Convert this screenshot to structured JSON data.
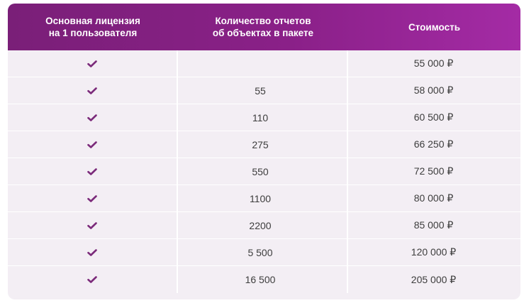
{
  "colors": {
    "header_gradient_start": "#7a1f78",
    "header_gradient_end": "#a42ba5",
    "row_background": "#f3eef4",
    "check_color": "#7b2a7a"
  },
  "table": {
    "headers": {
      "license": [
        "Основная лицензия",
        "на 1 пользователя"
      ],
      "reports": [
        "Количество отчетов",
        "об объектах в пакете"
      ],
      "price": "Стоимость"
    },
    "rows": [
      {
        "license": "check-icon",
        "reports": "",
        "price": "55 000 ₽"
      },
      {
        "license": "check-icon",
        "reports": "55",
        "price": "58 000 ₽"
      },
      {
        "license": "check-icon",
        "reports": "110",
        "price": "60 500 ₽"
      },
      {
        "license": "check-icon",
        "reports": "275",
        "price": "66 250 ₽"
      },
      {
        "license": "check-icon",
        "reports": "550",
        "price": "72 500 ₽"
      },
      {
        "license": "check-icon",
        "reports": "1100",
        "price": "80 000 ₽"
      },
      {
        "license": "check-icon",
        "reports": "2200",
        "price": "85 000 ₽"
      },
      {
        "license": "check-icon",
        "reports": "5 500",
        "price": "120 000 ₽"
      },
      {
        "license": "check-icon",
        "reports": "16 500",
        "price": "205 000 ₽"
      }
    ]
  }
}
